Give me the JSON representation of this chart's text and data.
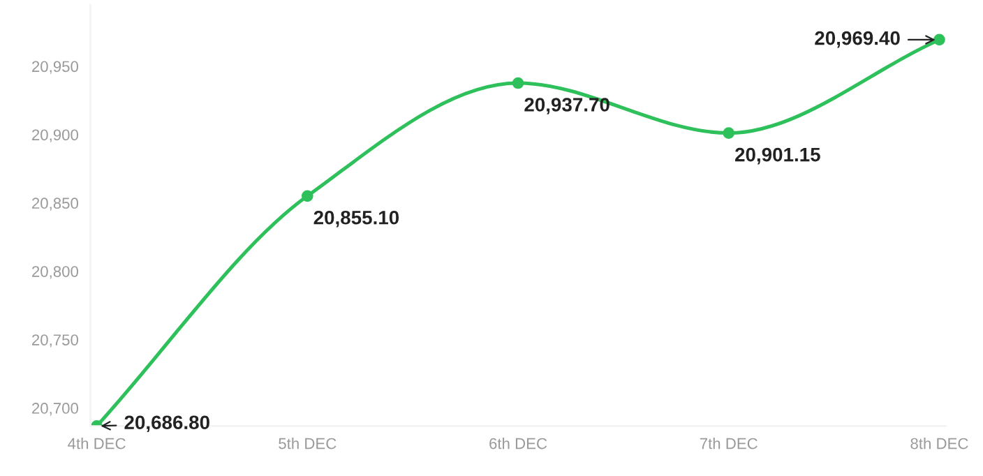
{
  "chart_data": {
    "type": "line",
    "categories": [
      "4th DEC",
      "5th DEC",
      "6th DEC",
      "7th DEC",
      "8th DEC"
    ],
    "series": [
      {
        "color": "#2ec05a",
        "values": [
          20686.8,
          20855.1,
          20937.7,
          20901.15,
          20969.4
        ],
        "value_labels": [
          "20,686.80",
          "20,855.10",
          "20,937.70",
          "20,901.15",
          "20,969.40"
        ]
      }
    ],
    "ylim": [
      20686.8,
      20995
    ],
    "yticks": [
      {
        "value": 20700,
        "label": "20,700"
      },
      {
        "value": 20750,
        "label": "20,750"
      },
      {
        "value": 20800,
        "label": "20,800"
      },
      {
        "value": 20850,
        "label": "20,850"
      },
      {
        "value": 20900,
        "label": "20,900"
      },
      {
        "value": 20950,
        "label": "20,950"
      }
    ],
    "marker": "circle",
    "line_style": "solid",
    "grid": false,
    "legend": false
  }
}
